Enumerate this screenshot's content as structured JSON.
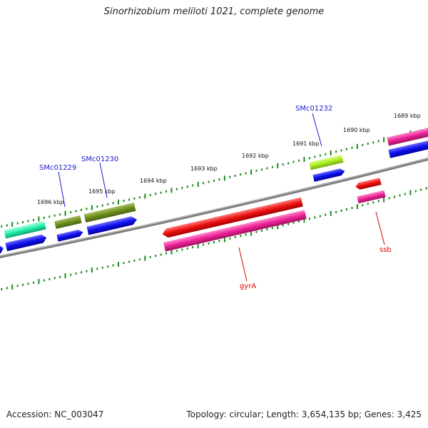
{
  "title": "Sinorhizobium meliloti 1021, complete genome",
  "footer": {
    "accession": "Accession: NC_003047",
    "summary": "Topology: circular; Length: 3,654,135 bp; Genes: 3,425"
  },
  "ticks": [
    {
      "label": "1689 kbp"
    },
    {
      "label": "1690 kbp"
    },
    {
      "label": "1691 kbp"
    },
    {
      "label": "1692 kbp"
    },
    {
      "label": "1693 kbp"
    },
    {
      "label": "1694 kbp"
    },
    {
      "label": "1695 kbp"
    },
    {
      "label": "1696 kbp"
    }
  ],
  "gene_labels": [
    {
      "label": "SMc01232",
      "color": "#1a1acc"
    },
    {
      "label": "SMc01230",
      "color": "#1a1acc"
    },
    {
      "label": "SMc01229",
      "color": "#1a1acc"
    },
    {
      "label": "gyrA",
      "color": "#dd0000"
    },
    {
      "label": "ssb",
      "color": "#dd0000"
    }
  ],
  "colors": {
    "backbone": "#808080",
    "tick": "#1a8a1a",
    "cds_blue": "#1010ee",
    "gene_red": "#ee1111",
    "gene_magenta": "#ee2299",
    "gene_olive": "#6f8f1f",
    "gene_lime": "#aaee22",
    "gene_aqua": "#22eeaa"
  }
}
